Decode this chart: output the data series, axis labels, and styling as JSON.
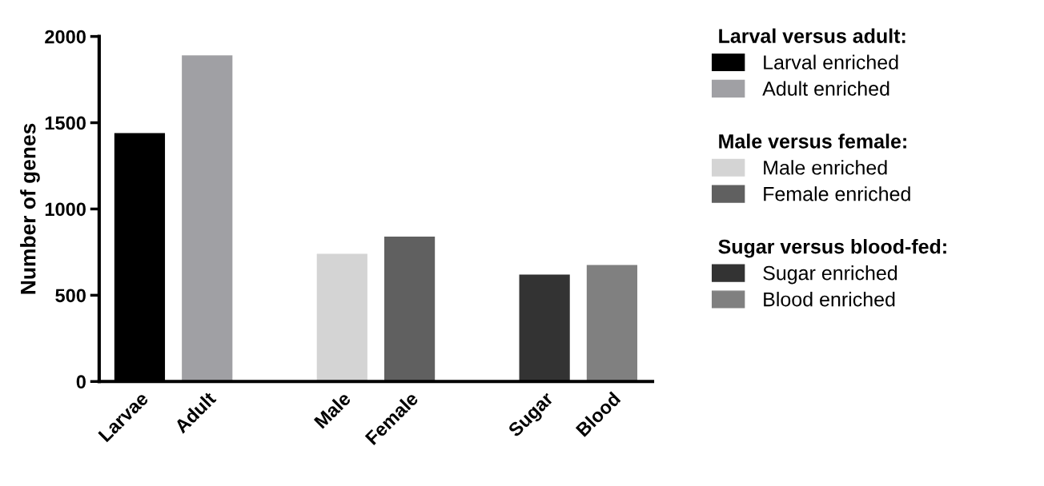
{
  "chart_data": {
    "type": "bar",
    "ylabel": "Number of genes",
    "categories": [
      "Larvae",
      "Adult",
      null,
      "Male",
      "Female",
      null,
      "Sugar",
      "Blood"
    ],
    "series": [
      {
        "name": "Larval enriched",
        "color": "#000000",
        "values": [
          1440,
          null,
          null,
          null,
          null,
          null,
          null,
          null
        ]
      },
      {
        "name": "Adult enriched",
        "color": "#a0a0a4",
        "values": [
          null,
          1890,
          null,
          null,
          null,
          null,
          null,
          null
        ]
      },
      {
        "name": "Male enriched",
        "color": "#d4d4d4",
        "values": [
          null,
          null,
          null,
          740,
          null,
          null,
          null,
          null
        ]
      },
      {
        "name": "Female enriched",
        "color": "#606060",
        "values": [
          null,
          null,
          null,
          null,
          840,
          null,
          null,
          null
        ]
      },
      {
        "name": "Sugar enriched",
        "color": "#333333",
        "values": [
          null,
          null,
          null,
          null,
          null,
          null,
          620,
          null
        ]
      },
      {
        "name": "Blood enriched",
        "color": "#808080",
        "values": [
          null,
          null,
          null,
          null,
          null,
          null,
          null,
          675
        ]
      }
    ],
    "annotations": [
      "Larval versus adult:",
      "Male versus female:",
      "Sugar versus blood-fed:"
    ],
    "ylim": [
      0,
      2000
    ],
    "yticks": [
      0,
      500,
      1000,
      1500,
      2000
    ],
    "grid": false,
    "legend": "right"
  }
}
